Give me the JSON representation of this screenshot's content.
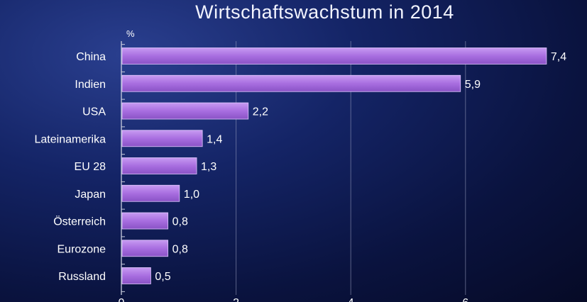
{
  "chart_data": {
    "type": "bar",
    "orientation": "horizontal",
    "title": "Wirtschaftswachstum in 2014",
    "unit_label": "%",
    "categories": [
      "China",
      "Indien",
      "USA",
      "Lateinamerika",
      "EU 28",
      "Japan",
      "Österreich",
      "Eurozone",
      "Russland"
    ],
    "values": [
      7.4,
      5.9,
      2.2,
      1.4,
      1.3,
      1.0,
      0.8,
      0.8,
      0.5
    ],
    "value_labels": [
      "7,4",
      "5,9",
      "2,2",
      "1,4",
      "1,3",
      "1,0",
      "0,8",
      "0,8",
      "0,5"
    ],
    "xticks": [
      0,
      2,
      4,
      6
    ],
    "xtick_labels": [
      "0",
      "2",
      "4",
      "6"
    ],
    "xlim": [
      0,
      8
    ],
    "grid": "vertical",
    "bar_color": "#a86ee0",
    "axis_color": "#c8ccdd"
  }
}
